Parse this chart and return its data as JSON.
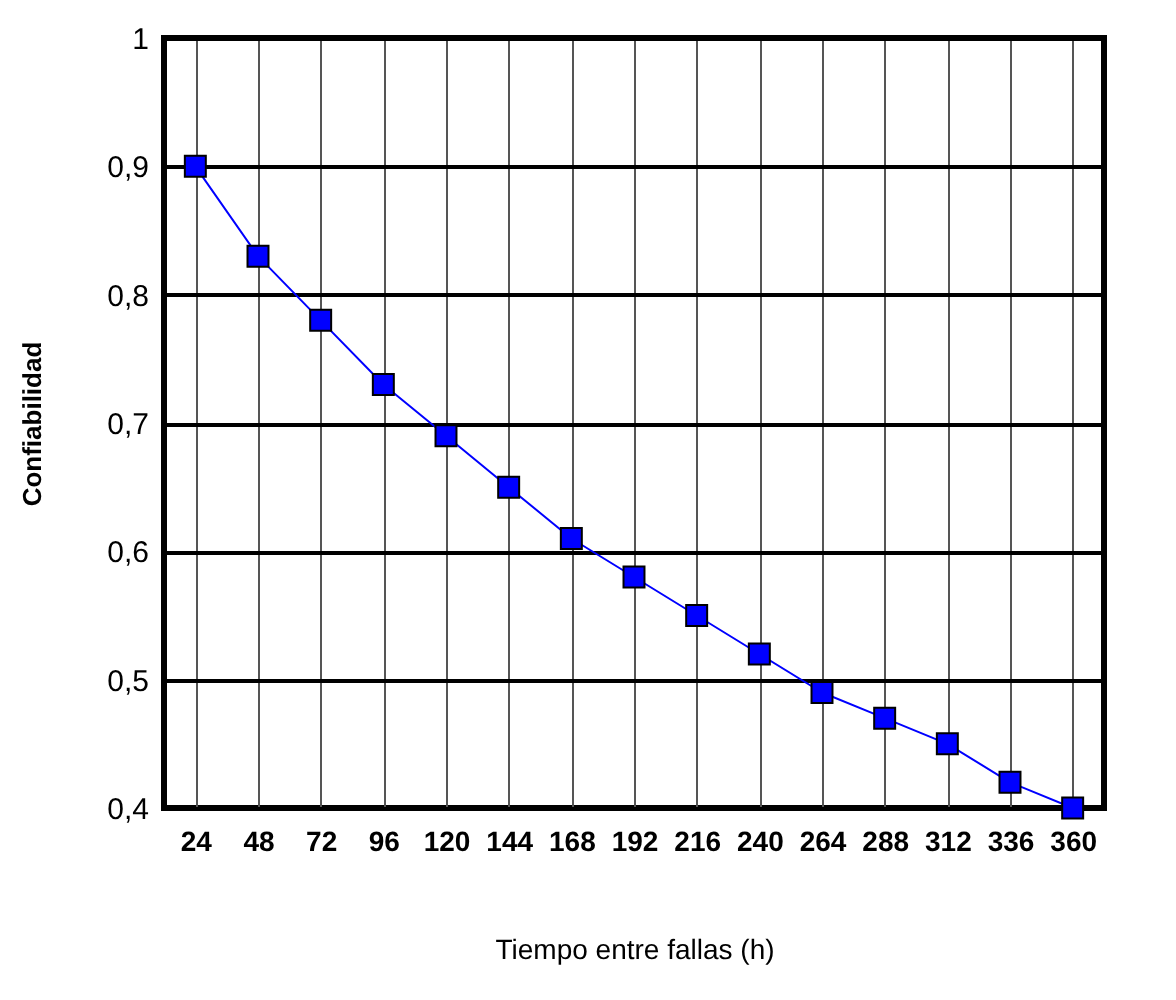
{
  "chart_data": {
    "type": "line",
    "xlabel": "Tiempo entre fallas (h)",
    "ylabel": "Confiabilidad",
    "categories": [
      "24",
      "48",
      "72",
      "96",
      "120",
      "144",
      "168",
      "192",
      "216",
      "240",
      "264",
      "288",
      "312",
      "336",
      "360"
    ],
    "series": [
      {
        "color": "#0000ff",
        "values": [
          0.9,
          0.83,
          0.78,
          0.73,
          0.69,
          0.65,
          0.61,
          0.58,
          0.55,
          0.52,
          0.49,
          0.47,
          0.45,
          0.42,
          0.4
        ]
      }
    ],
    "ylim": [
      0.4,
      1
    ],
    "yticks": [
      {
        "value": 0.4,
        "label": "0,4"
      },
      {
        "value": 0.5,
        "label": "0,5"
      },
      {
        "value": 0.6,
        "label": "0,6"
      },
      {
        "value": 0.7,
        "label": "0,7"
      },
      {
        "value": 0.8,
        "label": "0,8"
      },
      {
        "value": 0.9,
        "label": "0,9"
      },
      1
    ],
    "grid": true,
    "marker": "square",
    "line_style": "solid",
    "legend": false
  }
}
